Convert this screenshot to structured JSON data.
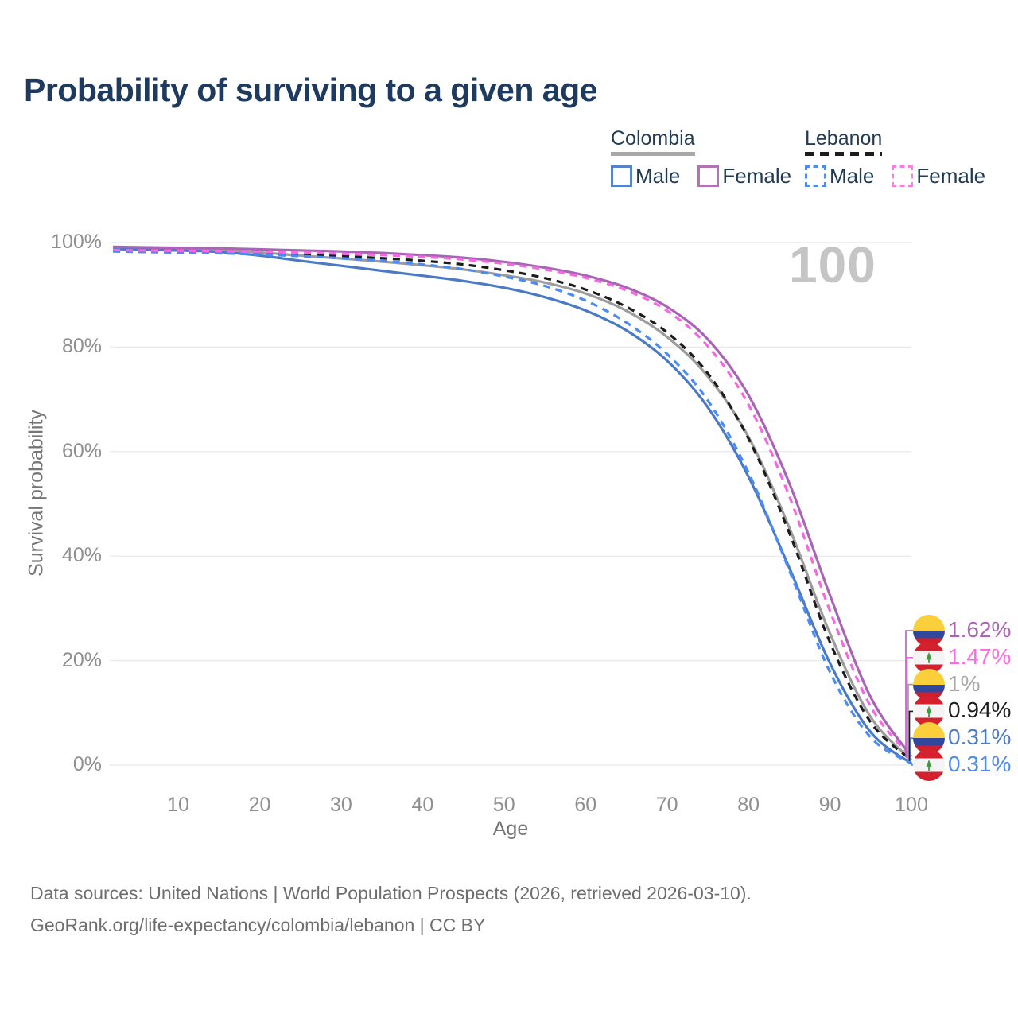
{
  "title": "Probability of surviving to a given age",
  "legend": {
    "groups": [
      {
        "name": "Colombia",
        "line_style": "solid",
        "underline_color": "#a8a8a8",
        "items": [
          {
            "label": "Male",
            "color": "#5585c8"
          },
          {
            "label": "Female",
            "color": "#b273b3"
          }
        ]
      },
      {
        "name": "Lebanon",
        "line_style": "dashed",
        "underline_color": "#1c1c1c",
        "items": [
          {
            "label": "Male",
            "color": "#4e8cf0"
          },
          {
            "label": "Female",
            "color": "#fc7ce0"
          }
        ]
      }
    ]
  },
  "chart_data": {
    "type": "line",
    "title": "Probability of surviving to a given age",
    "xlabel": "Age",
    "ylabel": "Survival probability",
    "xlim": [
      0,
      100
    ],
    "ylim": [
      0,
      100
    ],
    "x_ticks": [
      10,
      20,
      30,
      40,
      50,
      60,
      70,
      80,
      90,
      100
    ],
    "y_ticks": [
      0,
      20,
      40,
      60,
      80,
      100
    ],
    "y_tick_suffix": "%",
    "grid": "horizontal",
    "legend_position": "top-right",
    "annotation": {
      "watermark": "100"
    },
    "x": [
      2,
      5,
      10,
      15,
      20,
      25,
      30,
      35,
      40,
      45,
      50,
      55,
      60,
      65,
      70,
      75,
      80,
      85,
      90,
      95,
      100
    ],
    "series": [
      {
        "name": "Colombia Both sexes",
        "country": "Colombia",
        "sex": "Both",
        "color": "#9c9c9c",
        "dash": false,
        "row": 2,
        "end_label": "1%",
        "label_color": "#a8a8a8",
        "flag": "colombia",
        "values": [
          99.0,
          98.85,
          98.7,
          98.5,
          98.1,
          97.5,
          96.95,
          96.35,
          95.65,
          94.85,
          93.75,
          92.35,
          90.25,
          86.95,
          81.95,
          74.4,
          62.8,
          45.5,
          25.2,
          9.2,
          1.0
        ]
      },
      {
        "name": "Colombia Male",
        "country": "Colombia",
        "sex": "Male",
        "color": "#4a7ac5",
        "dash": false,
        "row": 4,
        "end_label": "0.31%",
        "label_color": "#4d7bc7",
        "flag": "colombia",
        "values": [
          98.8,
          98.65,
          98.5,
          98.2,
          97.5,
          96.5,
          95.55,
          94.6,
          93.65,
          92.65,
          91.35,
          89.55,
          87.0,
          83.2,
          77.4,
          68.5,
          55.2,
          37.8,
          19.5,
          6.3,
          0.31
        ]
      },
      {
        "name": "Colombia Female",
        "country": "Colombia",
        "sex": "Female",
        "color": "#a965b5",
        "dash": false,
        "row": 0,
        "end_label": "1.62%",
        "label_color": "#ad63b5",
        "flag": "colombia",
        "values": [
          99.2,
          99.1,
          99.0,
          98.9,
          98.7,
          98.5,
          98.3,
          98.0,
          97.6,
          97.1,
          96.3,
          95.2,
          93.7,
          91.4,
          87.7,
          81.5,
          70.8,
          54.0,
          32.5,
          13.0,
          1.62
        ]
      },
      {
        "name": "Lebanon Both sexes",
        "country": "Lebanon",
        "sex": "Both",
        "color": "#1c1c1c",
        "dash": true,
        "row": 3,
        "end_label": "0.94%",
        "label_color": "#1c1c1c",
        "flag": "lebanon",
        "values": [
          98.45,
          98.35,
          98.25,
          98.15,
          97.95,
          97.7,
          97.4,
          97.0,
          96.5,
          95.8,
          94.7,
          93.2,
          91.0,
          87.7,
          82.8,
          75.0,
          62.5,
          44.5,
          23.5,
          8.2,
          0.94
        ]
      },
      {
        "name": "Lebanon Male",
        "country": "Lebanon",
        "sex": "Male",
        "color": "#4b8bf5",
        "dash": true,
        "row": 5,
        "end_label": "0.31%",
        "label_color": "#4b8bf5",
        "flag": "lebanon",
        "values": [
          98.3,
          98.2,
          98.1,
          97.95,
          97.7,
          97.4,
          97.0,
          96.5,
          95.8,
          94.9,
          93.5,
          91.7,
          88.9,
          84.7,
          78.7,
          69.8,
          56.0,
          37.3,
          17.8,
          5.3,
          0.31
        ]
      },
      {
        "name": "Lebanon Female",
        "country": "Lebanon",
        "sex": "Female",
        "color": "#f767e3",
        "dash": true,
        "row": 1,
        "end_label": "1.47%",
        "label_color": "#fb6be1",
        "flag": "lebanon",
        "values": [
          98.6,
          98.5,
          98.45,
          98.35,
          98.2,
          98.05,
          97.85,
          97.6,
          97.25,
          96.75,
          95.95,
          94.85,
          93.25,
          90.85,
          86.95,
          80.2,
          69.0,
          51.5,
          29.5,
          11.2,
          1.47
        ]
      }
    ]
  },
  "footer": {
    "line1": "Data sources: United Nations | World Population Prospects (2026, retrieved 2026-03-10).",
    "line2": "GeoRank.org/life-expectancy/colombia/lebanon | CC BY"
  }
}
